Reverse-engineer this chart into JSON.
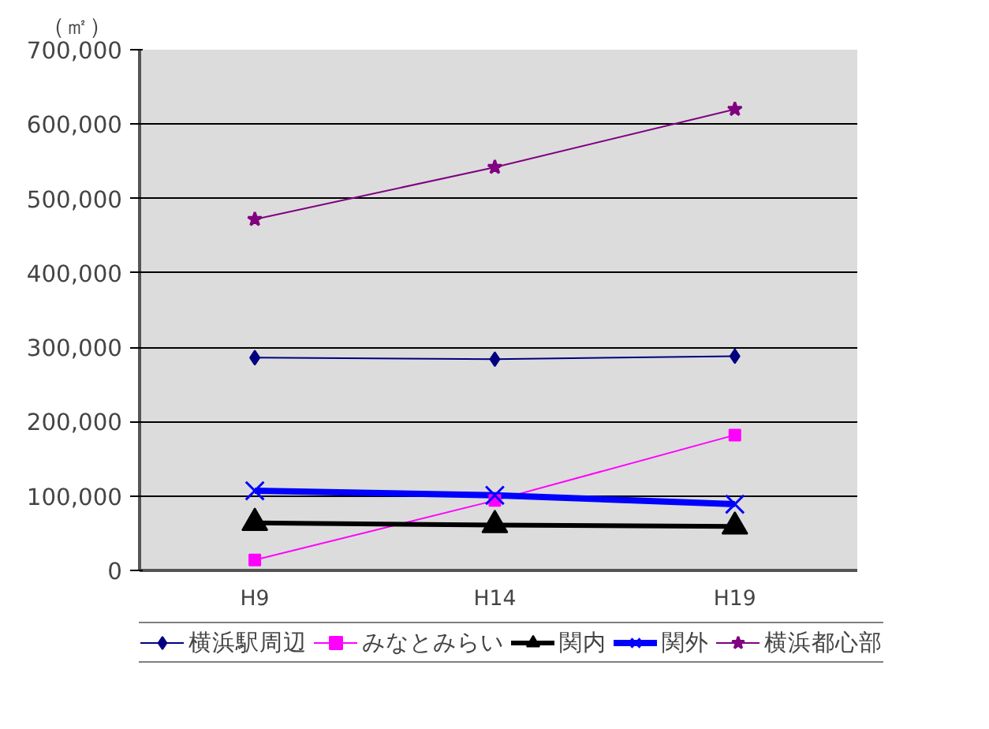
{
  "chart_data": {
    "type": "line",
    "ylabel": "（㎡）",
    "categories": [
      "H9",
      "H14",
      "H19"
    ],
    "series": [
      {
        "name": "横浜駅周辺",
        "color": "#000080",
        "marker": "diamond",
        "values": [
          286000,
          284000,
          288000
        ]
      },
      {
        "name": "みなとみらい",
        "color": "#ff00ff",
        "marker": "square",
        "values": [
          14000,
          94000,
          182000
        ]
      },
      {
        "name": "関内",
        "color": "#000000",
        "marker": "triangle",
        "values": [
          64000,
          61000,
          59000
        ]
      },
      {
        "name": "関外",
        "color": "#0000ff",
        "marker": "cross",
        "values": [
          107000,
          101000,
          89000
        ]
      },
      {
        "name": "横浜都心部",
        "color": "#800080",
        "marker": "star",
        "values": [
          472000,
          542000,
          620000
        ]
      }
    ],
    "ylim": [
      0,
      700000
    ],
    "yticks": [
      {
        "value": 0,
        "label": "0"
      },
      {
        "value": 100000,
        "label": "100,000"
      },
      {
        "value": 200000,
        "label": "200,000"
      },
      {
        "value": 300000,
        "label": "300,000"
      },
      {
        "value": 400000,
        "label": "400,000"
      },
      {
        "value": 500000,
        "label": "500,000"
      },
      {
        "value": 600000,
        "label": "600,000"
      },
      {
        "value": 700000,
        "label": "700,000"
      }
    ],
    "grid": "y",
    "legend": "bottom"
  }
}
